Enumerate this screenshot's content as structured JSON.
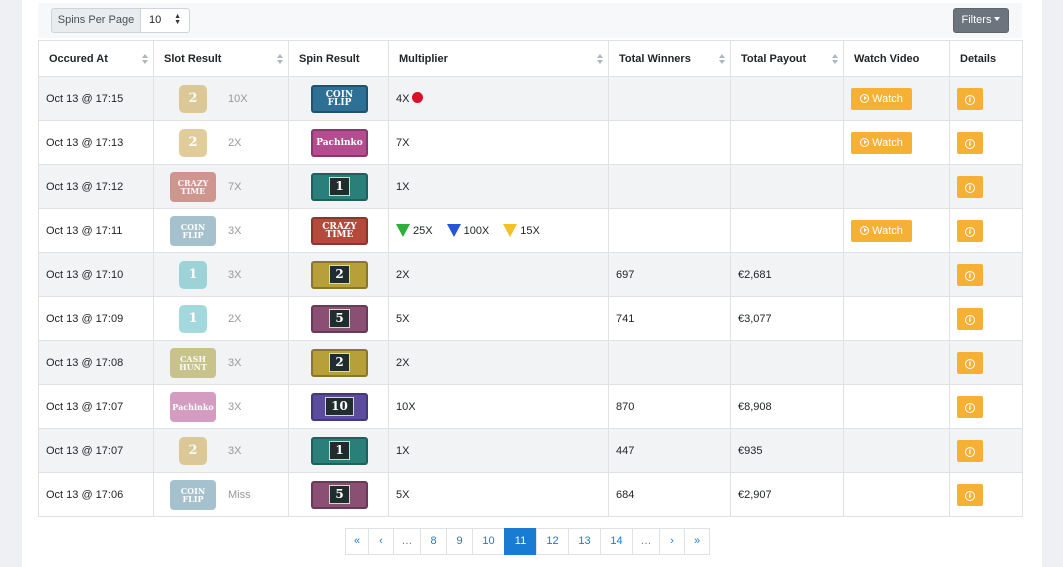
{
  "toolbar": {
    "spins_per_page_label": "Spins Per Page",
    "spins_per_page_value": "10",
    "filters_label": "Filters"
  },
  "columns": [
    "Occured At",
    "Slot Result",
    "Spin Result",
    "Multiplier",
    "Total Winners",
    "Total Payout",
    "Watch Video",
    "Details"
  ],
  "watch_label": "Watch",
  "info_glyph": "i",
  "rows": [
    {
      "occured_at": "Oct 13 @ 17:15",
      "slot": "2",
      "slot_mult": "10X",
      "spin": "COIN FLIP",
      "multiplier": "4X",
      "winners": "",
      "payout": "",
      "watch": true
    },
    {
      "occured_at": "Oct 13 @ 17:13",
      "slot": "2",
      "slot_mult": "2X",
      "spin": "Pachinko",
      "multiplier": "7X",
      "winners": "",
      "payout": "",
      "watch": true
    },
    {
      "occured_at": "Oct 13 @ 17:12",
      "slot": "CRAZY TIME",
      "slot_mult": "7X",
      "spin": "1",
      "multiplier": "1X",
      "winners": "",
      "payout": "",
      "watch": false
    },
    {
      "occured_at": "Oct 13 @ 17:11",
      "slot": "COIN FLIP",
      "slot_mult": "3X",
      "spin": "CRAZY TIME",
      "multiplier": "",
      "bonus": [
        {
          "color": "#2bb03a",
          "value": "25X"
        },
        {
          "color": "#2456d6",
          "value": "100X"
        },
        {
          "color": "#f5c023",
          "value": "15X"
        }
      ],
      "winners": "",
      "payout": "",
      "watch": true
    },
    {
      "occured_at": "Oct 13 @ 17:10",
      "slot": "1",
      "slot_mult": "3X",
      "spin": "2",
      "multiplier": "2X",
      "winners": "697",
      "payout": "€2,681",
      "watch": false
    },
    {
      "occured_at": "Oct 13 @ 17:09",
      "slot": "1",
      "slot_mult": "2X",
      "spin": "5",
      "multiplier": "5X",
      "winners": "741",
      "payout": "€3,077",
      "watch": false
    },
    {
      "occured_at": "Oct 13 @ 17:08",
      "slot": "CASH HUNT",
      "slot_mult": "3X",
      "spin": "2",
      "multiplier": "2X",
      "winners": "",
      "payout": "",
      "watch": false
    },
    {
      "occured_at": "Oct 13 @ 17:07",
      "slot": "Pachinko",
      "slot_mult": "3X",
      "spin": "10",
      "multiplier": "10X",
      "winners": "870",
      "payout": "€8,908",
      "watch": false
    },
    {
      "occured_at": "Oct 13 @ 17:07",
      "slot": "2",
      "slot_mult": "3X",
      "spin": "1",
      "multiplier": "1X",
      "winners": "447",
      "payout": "€935",
      "watch": false
    },
    {
      "occured_at": "Oct 13 @ 17:06",
      "slot": "COIN FLIP",
      "slot_mult": "Miss",
      "spin": "5",
      "multiplier": "5X",
      "winners": "684",
      "payout": "€2,907",
      "watch": false
    }
  ],
  "pagination": [
    "«",
    "‹",
    "…",
    "8",
    "9",
    "10",
    "11",
    "12",
    "13",
    "14",
    "…",
    "›",
    "»"
  ],
  "pagination_active": "11"
}
